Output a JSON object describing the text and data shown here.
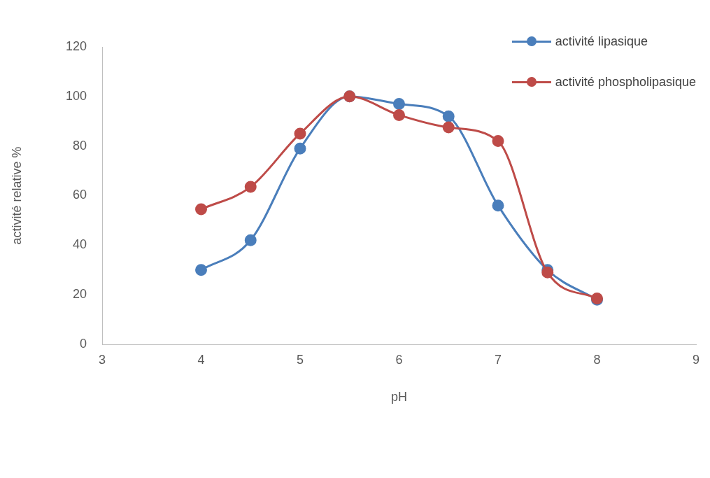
{
  "chart_data": {
    "type": "line",
    "xlabel": "pH",
    "ylabel": "activité relative %",
    "x": [
      4,
      4.5,
      5,
      5.5,
      6,
      6.5,
      7,
      7.5,
      8
    ],
    "series": [
      {
        "name": "activité lipasique",
        "color": "#4a7ebb",
        "values": [
          30,
          42,
          79,
          100,
          97,
          92,
          56,
          30,
          18
        ]
      },
      {
        "name": "activité phospholipasique",
        "color": "#be4b48",
        "values": [
          54.5,
          63.5,
          85,
          100,
          92.5,
          87.5,
          82,
          29,
          18.5
        ]
      }
    ],
    "xlim": [
      3,
      9
    ],
    "xticks": [
      3,
      4,
      5,
      6,
      7,
      8,
      9
    ],
    "ylim": [
      0,
      120
    ],
    "yticks": [
      0,
      20,
      40,
      60,
      80,
      100,
      120
    ],
    "grid": false,
    "legend": "top right",
    "marker": "circle",
    "line_style": "solid"
  }
}
